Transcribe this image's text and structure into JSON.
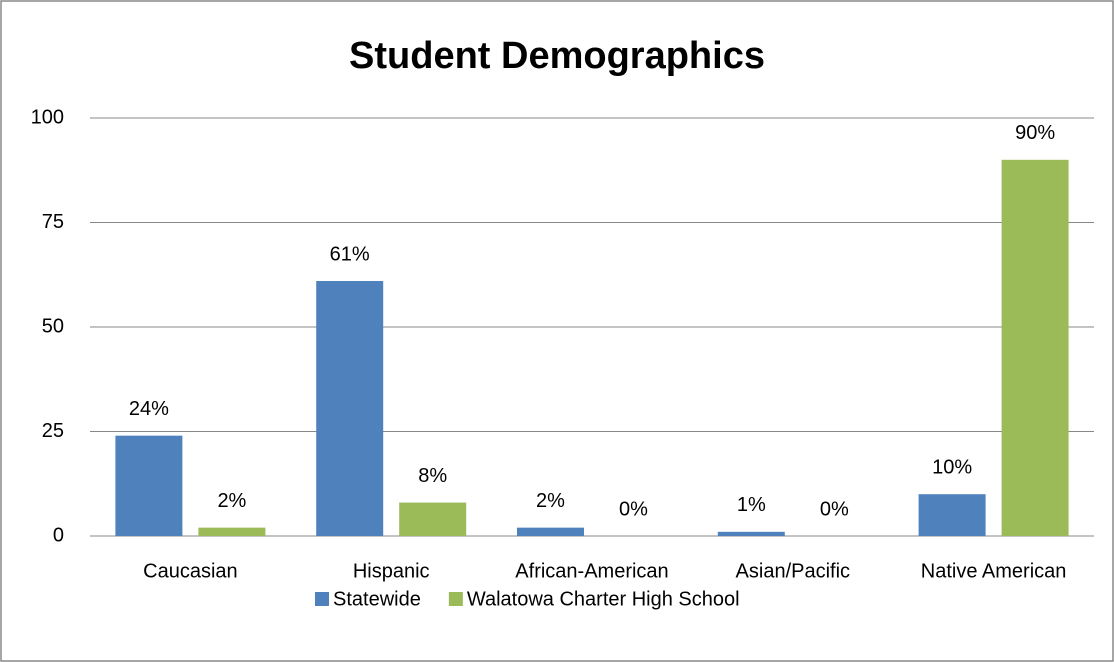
{
  "chart_data": {
    "type": "bar",
    "title": "Student Demographics",
    "categories": [
      "Caucasian",
      "Hispanic",
      "African-American",
      "Asian/Pacific",
      "Native American"
    ],
    "series": [
      {
        "name": "Statewide",
        "color": "#4f81bd",
        "values": [
          24,
          61,
          2,
          1,
          10
        ],
        "value_labels": [
          "24%",
          "61%",
          "2%",
          "1%",
          "10%"
        ]
      },
      {
        "name": "Walatowa Charter High School",
        "color": "#9bbb59",
        "values": [
          2,
          8,
          0,
          0,
          90
        ],
        "value_labels": [
          "2%",
          "8%",
          "0%",
          "0%",
          "90%"
        ]
      }
    ],
    "ylim": [
      0,
      100
    ],
    "yticks": [
      0,
      25,
      50,
      75,
      100
    ],
    "grid": true,
    "legend": "bottom"
  }
}
